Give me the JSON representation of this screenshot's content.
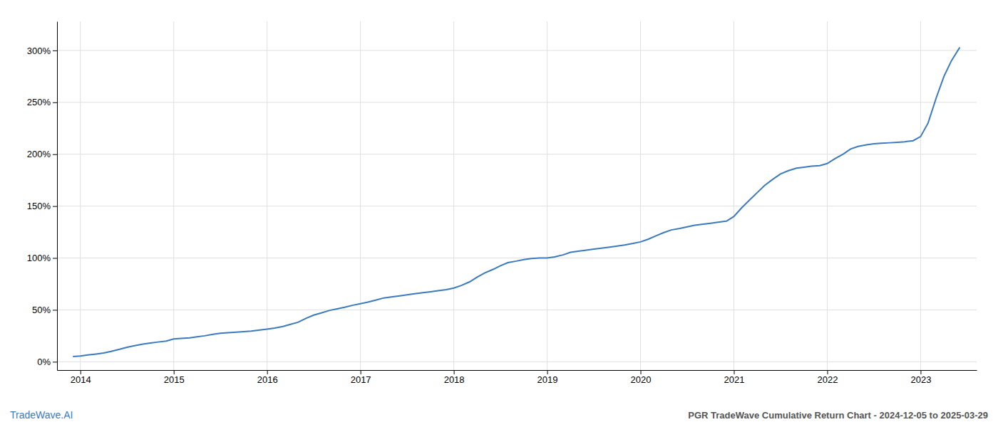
{
  "chart_data": {
    "type": "line",
    "title": "PGR TradeWave Cumulative Return Chart - 2024-12-05 to 2025-03-29",
    "annotations": [
      "TradeWave.AI"
    ],
    "color": "#3a7abf",
    "grid": true,
    "xlim": [
      2013.75,
      2023.6
    ],
    "ylim": [
      -0.08,
      3.28
    ],
    "xticks": [
      2014,
      2015,
      2016,
      2017,
      2018,
      2019,
      2020,
      2021,
      2022,
      2023
    ],
    "yticks": [
      {
        "value": 0.0,
        "label": "0%"
      },
      {
        "value": 0.5,
        "label": "50%"
      },
      {
        "value": 1.0,
        "label": "100%"
      },
      {
        "value": 1.5,
        "label": "150%"
      },
      {
        "value": 2.0,
        "label": "200%"
      },
      {
        "value": 2.5,
        "label": "250%"
      },
      {
        "value": 3.0,
        "label": "300%"
      }
    ],
    "x": [
      2013.92,
      2014.0,
      2014.08,
      2014.17,
      2014.25,
      2014.33,
      2014.42,
      2014.5,
      2014.58,
      2014.67,
      2014.75,
      2014.83,
      2014.92,
      2015.0,
      2015.08,
      2015.17,
      2015.25,
      2015.33,
      2015.42,
      2015.5,
      2015.58,
      2015.67,
      2015.75,
      2015.83,
      2015.92,
      2016.0,
      2016.08,
      2016.17,
      2016.25,
      2016.33,
      2016.42,
      2016.5,
      2016.58,
      2016.67,
      2016.75,
      2016.83,
      2016.92,
      2017.0,
      2017.08,
      2017.17,
      2017.25,
      2017.33,
      2017.42,
      2017.5,
      2017.58,
      2017.67,
      2017.75,
      2017.83,
      2017.92,
      2018.0,
      2018.08,
      2018.17,
      2018.25,
      2018.33,
      2018.42,
      2018.5,
      2018.58,
      2018.67,
      2018.75,
      2018.83,
      2018.92,
      2019.0,
      2019.08,
      2019.17,
      2019.25,
      2019.33,
      2019.42,
      2019.5,
      2019.58,
      2019.67,
      2019.75,
      2019.83,
      2019.92,
      2020.0,
      2020.08,
      2020.17,
      2020.25,
      2020.33,
      2020.42,
      2020.5,
      2020.58,
      2020.67,
      2020.75,
      2020.83,
      2020.92,
      2021.0,
      2021.08,
      2021.17,
      2021.25,
      2021.33,
      2021.42,
      2021.5,
      2021.58,
      2021.67,
      2021.75,
      2021.83,
      2021.92,
      2022.0,
      2022.08,
      2022.17,
      2022.25,
      2022.33,
      2022.42,
      2022.5,
      2022.58,
      2022.67,
      2022.75,
      2022.83,
      2022.92,
      2023.0,
      2023.08,
      2023.17,
      2023.25,
      2023.33,
      2023.42
    ],
    "values": [
      0.05,
      0.055,
      0.065,
      0.075,
      0.085,
      0.1,
      0.12,
      0.14,
      0.155,
      0.17,
      0.18,
      0.19,
      0.2,
      0.22,
      0.225,
      0.23,
      0.24,
      0.25,
      0.265,
      0.275,
      0.28,
      0.285,
      0.29,
      0.295,
      0.305,
      0.315,
      0.325,
      0.34,
      0.36,
      0.38,
      0.42,
      0.45,
      0.47,
      0.495,
      0.51,
      0.525,
      0.545,
      0.56,
      0.575,
      0.595,
      0.615,
      0.625,
      0.635,
      0.645,
      0.655,
      0.665,
      0.675,
      0.685,
      0.695,
      0.71,
      0.735,
      0.77,
      0.815,
      0.855,
      0.89,
      0.925,
      0.955,
      0.97,
      0.985,
      0.995,
      1.0,
      1.0,
      1.01,
      1.03,
      1.055,
      1.065,
      1.075,
      1.085,
      1.095,
      1.105,
      1.115,
      1.125,
      1.14,
      1.155,
      1.18,
      1.215,
      1.245,
      1.27,
      1.285,
      1.3,
      1.315,
      1.325,
      1.335,
      1.345,
      1.355,
      1.4,
      1.48,
      1.56,
      1.63,
      1.7,
      1.76,
      1.81,
      1.84,
      1.865,
      1.875,
      1.885,
      1.89,
      1.91,
      1.955,
      2.0,
      2.05,
      2.075,
      2.09,
      2.1,
      2.105,
      2.11,
      2.115,
      2.12,
      2.13,
      2.17,
      2.3,
      2.55,
      2.75,
      2.9,
      3.03
    ]
  }
}
